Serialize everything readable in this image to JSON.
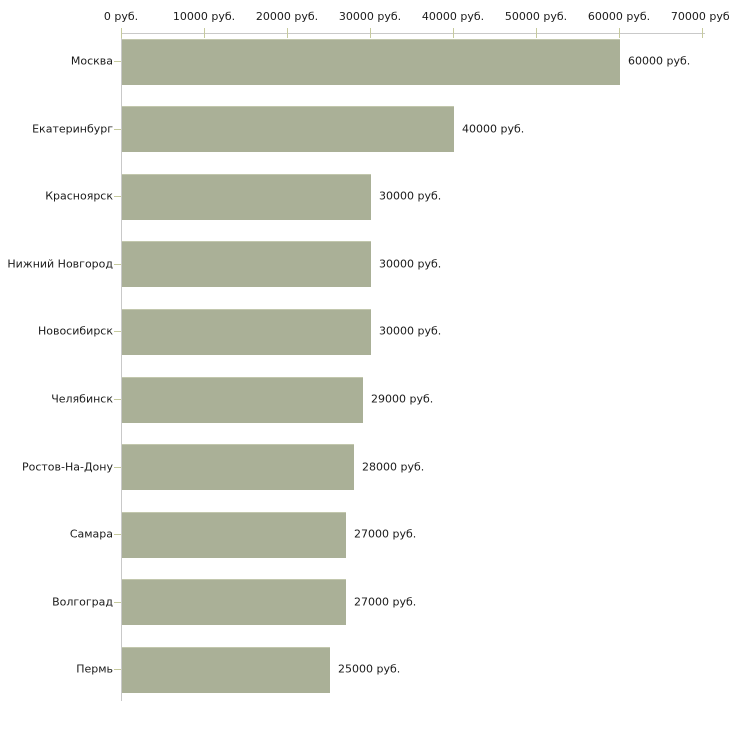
{
  "chart_data": {
    "type": "bar",
    "orientation": "horizontal",
    "title": "",
    "xlabel": "",
    "ylabel": "",
    "unit": "руб.",
    "categories": [
      "Москва",
      "Екатеринбург",
      "Красноярск",
      "Нижний Новгород",
      "Новосибирск",
      "Челябинск",
      "Ростов-На-Дону",
      "Самара",
      "Волгоград",
      "Пермь"
    ],
    "values": [
      60000,
      40000,
      30000,
      30000,
      30000,
      29000,
      28000,
      27000,
      27000,
      25000
    ],
    "bar_value_labels": [
      "60000 руб.",
      "40000 руб.",
      "30000 руб.",
      "30000 руб.",
      "30000 руб.",
      "29000 руб.",
      "28000 руб.",
      "27000 руб.",
      "27000 руб.",
      "25000 руб."
    ],
    "x_ticks": [
      0,
      10000,
      20000,
      30000,
      40000,
      50000,
      60000,
      70000
    ],
    "x_tick_labels": [
      "0 руб.",
      "10000 руб.",
      "20000 руб.",
      "30000 руб.",
      "40000 руб.",
      "50000 руб.",
      "60000 руб.",
      "70000 руб."
    ],
    "xlim": [
      0,
      70000
    ],
    "grid": false,
    "legend_position": "none",
    "colors": {
      "bar_fill": "#aab097",
      "bar_edge": "#c2c7ad",
      "axis_line": "#c9c9c9",
      "tick_mark": "#c6ca9d",
      "text": "#1b1b1b",
      "background": "#ffffff"
    }
  }
}
